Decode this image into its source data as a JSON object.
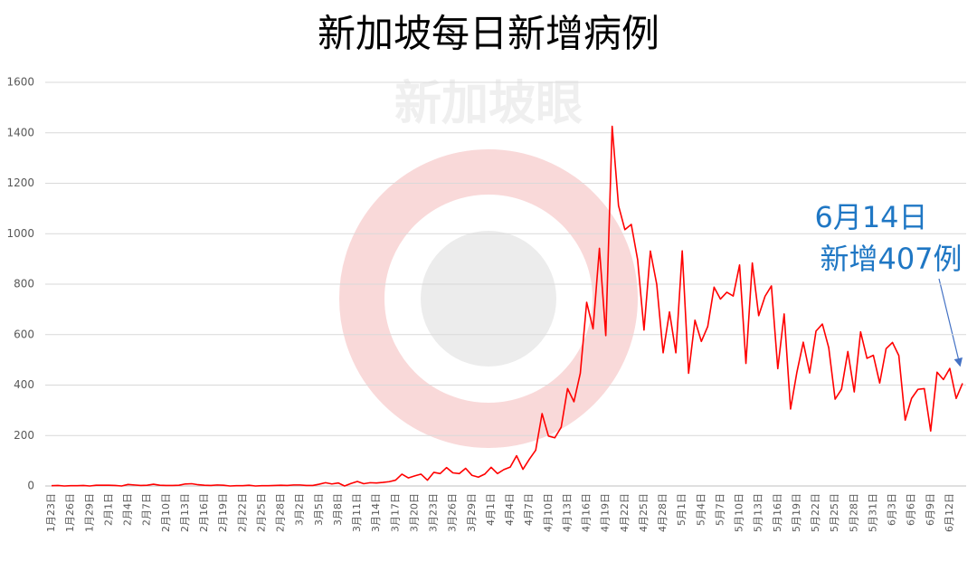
{
  "chart_data": {
    "type": "line",
    "title": "新加坡每日新增病例",
    "watermark": "新加坡眼",
    "annotation": [
      "6月14日",
      "新增407例"
    ],
    "categories": [
      "1月23日",
      null,
      null,
      "1月26日",
      null,
      null,
      "1月29日",
      null,
      null,
      "2月1日",
      null,
      null,
      "2月4日",
      null,
      null,
      "2月7日",
      null,
      null,
      "2月10日",
      null,
      null,
      "2月13日",
      null,
      null,
      "2月16日",
      null,
      null,
      "2月19日",
      null,
      null,
      "2月22日",
      null,
      null,
      "2月25日",
      null,
      null,
      "2月28日",
      null,
      null,
      "3月2日",
      null,
      null,
      "3月5日",
      null,
      null,
      "3月8日",
      null,
      null,
      "3月11日",
      null,
      null,
      "3月14日",
      null,
      null,
      "3月17日",
      null,
      null,
      "3月20日",
      null,
      null,
      "3月23日",
      null,
      null,
      "3月26日",
      null,
      null,
      "3月29日",
      null,
      null,
      "4月1日",
      null,
      null,
      "4月4日",
      null,
      null,
      "4月7日",
      null,
      null,
      "4月10日",
      null,
      null,
      "4月13日",
      null,
      null,
      "4月16日",
      null,
      null,
      "4月19日",
      null,
      null,
      "4月22日",
      null,
      null,
      "4月25日",
      null,
      null,
      "4月28日",
      null,
      null,
      "5月1日",
      null,
      null,
      "5月4日",
      null,
      null,
      "5月7日",
      null,
      null,
      "5月10日",
      null,
      null,
      "5月13日",
      null,
      null,
      "5月16日",
      null,
      null,
      "5月19日",
      null,
      null,
      "5月22日",
      null,
      null,
      "5月25日",
      null,
      null,
      "5月28日",
      null,
      null,
      "5月31日",
      null,
      null,
      "6月3日",
      null,
      null,
      "6月6日",
      null,
      null,
      "6月9日",
      null,
      null,
      "6月12日",
      null,
      null
    ],
    "values": [
      1,
      2,
      0,
      1,
      1,
      2,
      0,
      3,
      3,
      3,
      2,
      0,
      6,
      4,
      2,
      3,
      7,
      3,
      2,
      2,
      3,
      8,
      9,
      5,
      3,
      2,
      4,
      3,
      0,
      1,
      1,
      3,
      0,
      1,
      1,
      2,
      3,
      2,
      4,
      4,
      2,
      2,
      7,
      13,
      8,
      12,
      0,
      10,
      18,
      9,
      13,
      12,
      14,
      17,
      23,
      47,
      32,
      40,
      47,
      23,
      54,
      49,
      73,
      52,
      49,
      70,
      42,
      35,
      47,
      74,
      49,
      65,
      75,
      120,
      66,
      106,
      142,
      287,
      198,
      191,
      233,
      386,
      334,
      447,
      728,
      623,
      942,
      596,
      1426,
      1111,
      1016,
      1037,
      897,
      618,
      931,
      799,
      528,
      690,
      528,
      932,
      447,
      657,
      573,
      632,
      788,
      741,
      768,
      753,
      876,
      486,
      884,
      675,
      752,
      793,
      465,
      682,
      305,
      451,
      570,
      448,
      614,
      642,
      548,
      344,
      383,
      533,
      373,
      611,
      506,
      518,
      408,
      544,
      569,
      517,
      261,
      347,
      383,
      386,
      218,
      451,
      422,
      466,
      347,
      407
    ],
    "color": "#ff0000",
    "ylim": [
      0,
      1600
    ],
    "yticks": [
      0,
      200,
      400,
      600,
      800,
      1000,
      1200,
      1400,
      1600
    ],
    "grid": true
  }
}
